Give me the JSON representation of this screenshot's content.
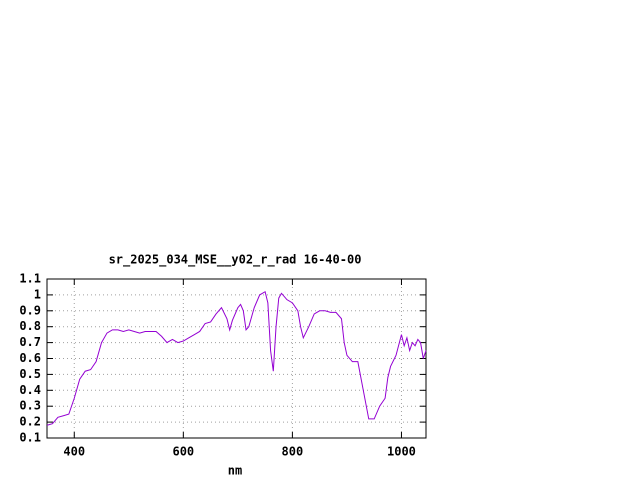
{
  "chart_data": {
    "type": "line",
    "title": "sr_2025_034_MSE__y02_r_rad 16-40-00",
    "xlabel": "nm",
    "x": [
      350,
      360,
      370,
      380,
      390,
      400,
      410,
      420,
      430,
      440,
      450,
      460,
      470,
      480,
      490,
      500,
      510,
      520,
      530,
      540,
      550,
      560,
      570,
      580,
      590,
      600,
      610,
      620,
      630,
      640,
      650,
      660,
      670,
      680,
      685,
      690,
      700,
      705,
      710,
      715,
      720,
      730,
      740,
      750,
      755,
      760,
      765,
      770,
      775,
      780,
      790,
      800,
      810,
      815,
      820,
      830,
      840,
      850,
      860,
      870,
      880,
      890,
      895,
      900,
      910,
      920,
      930,
      940,
      950,
      960,
      970,
      975,
      980,
      990,
      1000,
      1005,
      1010,
      1015,
      1020,
      1025,
      1030,
      1035,
      1040,
      1045
    ],
    "series": [
      {
        "color": "#9400d3",
        "values": [
          0.18,
          0.19,
          0.23,
          0.24,
          0.25,
          0.35,
          0.47,
          0.52,
          0.53,
          0.58,
          0.7,
          0.76,
          0.78,
          0.78,
          0.77,
          0.78,
          0.77,
          0.76,
          0.77,
          0.77,
          0.77,
          0.74,
          0.7,
          0.72,
          0.7,
          0.71,
          0.73,
          0.75,
          0.77,
          0.82,
          0.83,
          0.88,
          0.92,
          0.85,
          0.78,
          0.84,
          0.92,
          0.94,
          0.9,
          0.78,
          0.8,
          0.92,
          1.0,
          1.02,
          0.95,
          0.65,
          0.52,
          0.8,
          0.98,
          1.01,
          0.97,
          0.95,
          0.9,
          0.8,
          0.73,
          0.8,
          0.88,
          0.9,
          0.9,
          0.89,
          0.89,
          0.85,
          0.7,
          0.62,
          0.58,
          0.58,
          0.4,
          0.22,
          0.22,
          0.3,
          0.35,
          0.48,
          0.55,
          0.62,
          0.75,
          0.68,
          0.73,
          0.65,
          0.7,
          0.68,
          0.72,
          0.7,
          0.6,
          0.65
        ]
      }
    ],
    "xlim": [
      350,
      1045
    ],
    "ylim": [
      0.1,
      1.1
    ],
    "xticks": [
      400,
      600,
      800,
      1000
    ],
    "yticks": [
      0.1,
      0.2,
      0.3,
      0.4,
      0.5,
      0.6,
      0.7,
      0.8,
      0.9,
      1,
      1.1
    ],
    "grid": true
  }
}
